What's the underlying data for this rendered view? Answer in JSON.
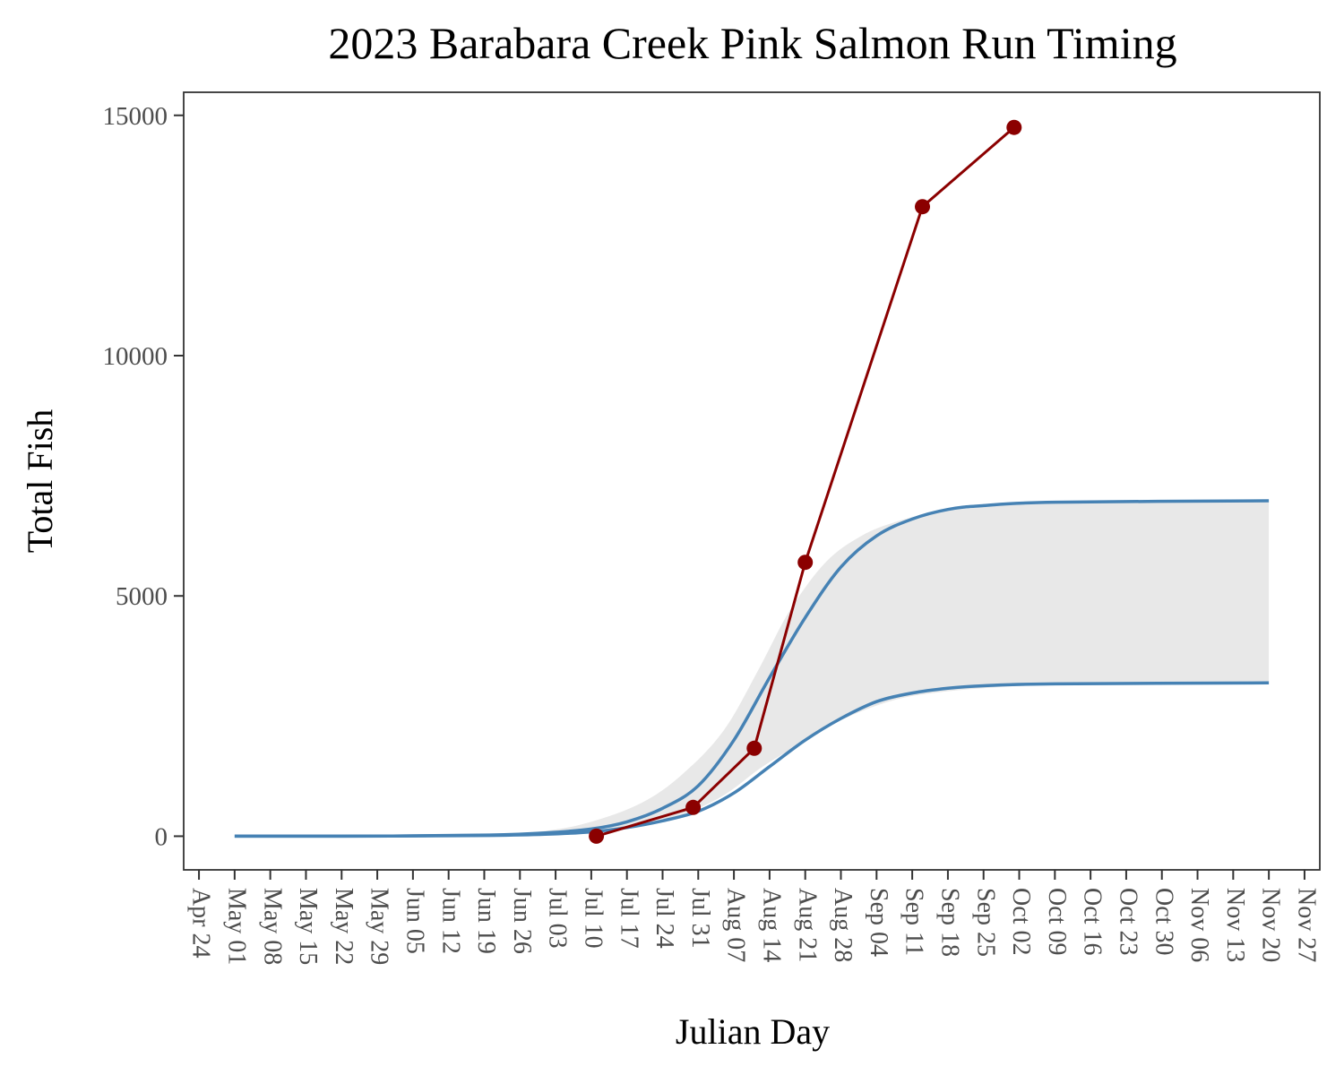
{
  "chart_data": {
    "type": "line",
    "title": "2023 Barabara Creek Pink Salmon Run Timing",
    "xlabel": "Julian Day",
    "ylabel": "Total Fish",
    "x_tick_labels": [
      "Apr 24",
      "May 01",
      "May 08",
      "May 15",
      "May 22",
      "May 29",
      "Jun 05",
      "Jun 12",
      "Jun 19",
      "Jun 26",
      "Jul 03",
      "Jul 10",
      "Jul 17",
      "Jul 24",
      "Jul 31",
      "Aug 07",
      "Aug 14",
      "Aug 21",
      "Aug 28",
      "Sep 04",
      "Sep 11",
      "Sep 18",
      "Sep 25",
      "Oct 02",
      "Oct 09",
      "Oct 16",
      "Oct 23",
      "Oct 30",
      "Nov 06",
      "Nov 13",
      "Nov 20",
      "Nov 27"
    ],
    "x_range": [
      "2023-04-21",
      "2023-11-30"
    ],
    "y_ticks": [
      0,
      5000,
      10000,
      15000
    ],
    "y_tick_labels": [
      "0",
      "5000",
      "10000",
      "15000"
    ],
    "ylim": [
      -700,
      15480
    ],
    "grid": false,
    "colors": {
      "observed": "#8b0000",
      "curves": "#4682b4",
      "band": "#e8e8e8",
      "panel": "#ebebeb"
    },
    "band": {
      "x": [
        "2023-05-01",
        "2023-06-01",
        "2023-06-20",
        "2023-07-01",
        "2023-07-10",
        "2023-07-20",
        "2023-07-28",
        "2023-08-05",
        "2023-08-12",
        "2023-08-18",
        "2023-08-25",
        "2023-09-01",
        "2023-09-08",
        "2023-09-15",
        "2023-09-25",
        "2023-10-10",
        "2023-11-20"
      ],
      "upper": [
        0,
        5,
        40,
        110,
        300,
        700,
        1300,
        2200,
        3500,
        4700,
        5700,
        6250,
        6550,
        6720,
        6850,
        6920,
        6960
      ],
      "lower": [
        0,
        3,
        10,
        40,
        90,
        230,
        450,
        850,
        1400,
        1800,
        2250,
        2600,
        2850,
        2980,
        3080,
        3150,
        3180
      ]
    },
    "series": [
      {
        "x": [
          "2023-05-01",
          "2023-06-01",
          "2023-06-20",
          "2023-07-01",
          "2023-07-10",
          "2023-07-17",
          "2023-07-24",
          "2023-07-31",
          "2023-08-07",
          "2023-08-14",
          "2023-08-21",
          "2023-08-28",
          "2023-09-04",
          "2023-09-11",
          "2023-09-18",
          "2023-09-25",
          "2023-10-09",
          "2023-11-20"
        ],
        "values": [
          0,
          3,
          25,
          70,
          150,
          300,
          580,
          1050,
          2000,
          3300,
          4550,
          5600,
          6250,
          6600,
          6800,
          6880,
          6950,
          6980
        ]
      },
      {
        "x": [
          "2023-05-01",
          "2023-06-01",
          "2023-06-20",
          "2023-07-01",
          "2023-07-10",
          "2023-07-17",
          "2023-07-24",
          "2023-07-31",
          "2023-08-07",
          "2023-08-14",
          "2023-08-21",
          "2023-08-28",
          "2023-09-04",
          "2023-09-11",
          "2023-09-18",
          "2023-09-25",
          "2023-10-09",
          "2023-11-20"
        ],
        "values": [
          0,
          2,
          15,
          40,
          90,
          180,
          320,
          520,
          900,
          1450,
          2000,
          2450,
          2800,
          2980,
          3080,
          3130,
          3170,
          3190
        ]
      },
      {
        "x": [
          "2023-07-11",
          "2023-07-30",
          "2023-08-11",
          "2023-08-21",
          "2023-09-13",
          "2023-10-01"
        ],
        "values": [
          0,
          600,
          1830,
          5700,
          13100,
          14750
        ]
      }
    ]
  }
}
